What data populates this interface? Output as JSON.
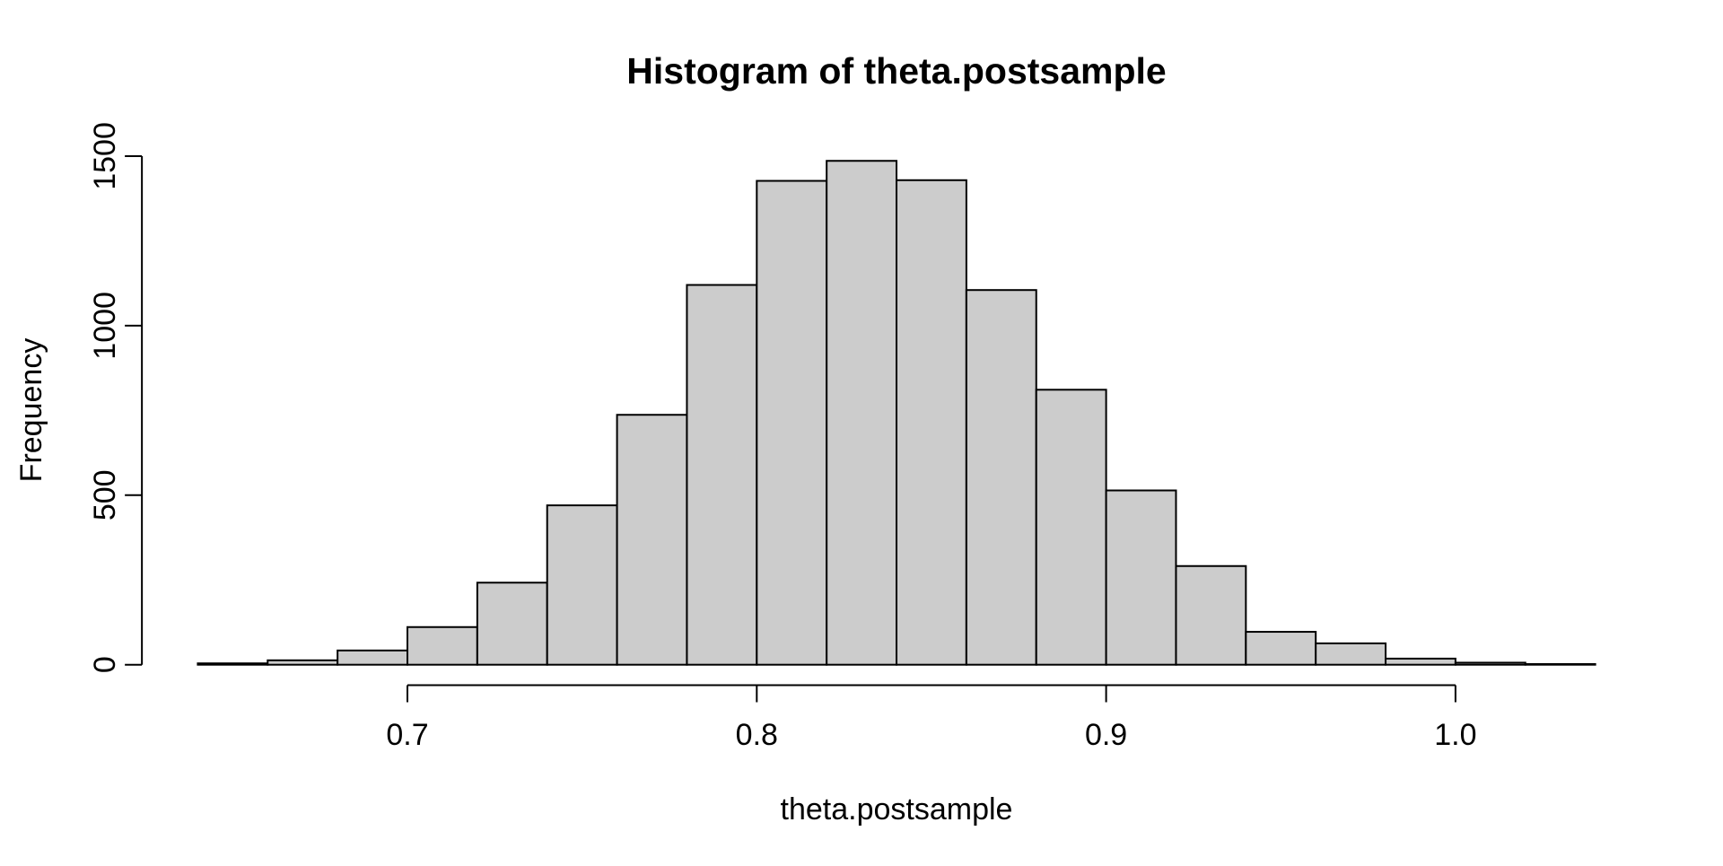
{
  "figure": {
    "background": "#FFFFFF"
  },
  "chart_data": {
    "type": "bar",
    "subtype": "histogram",
    "title": "Histogram of theta.postsample",
    "xlabel": "theta.postsample",
    "ylabel": "Frequency",
    "bin_start": 0.64,
    "bin_width": 0.02,
    "counts": [
      4,
      13,
      42,
      111,
      242,
      470,
      737,
      1120,
      1427,
      1486,
      1429,
      1105,
      811,
      514,
      291,
      97,
      63,
      18,
      6,
      2
    ],
    "x_ticks": [
      0.7,
      0.8,
      0.9,
      1.0
    ],
    "x_tick_labels": [
      "0.7",
      "0.8",
      "0.9",
      "1.0"
    ],
    "y_ticks": [
      0,
      500,
      1000,
      1500
    ],
    "y_tick_labels": [
      "0",
      "500",
      "1000",
      "1500"
    ],
    "xlim": [
      0.624,
      1.056
    ],
    "ylim": [
      0,
      1500
    ],
    "grid": false,
    "legend": "none",
    "bar_fill": "#CCCCCC",
    "bar_stroke": "#000000",
    "axis_color": "#000000",
    "text_color": "#000000"
  }
}
